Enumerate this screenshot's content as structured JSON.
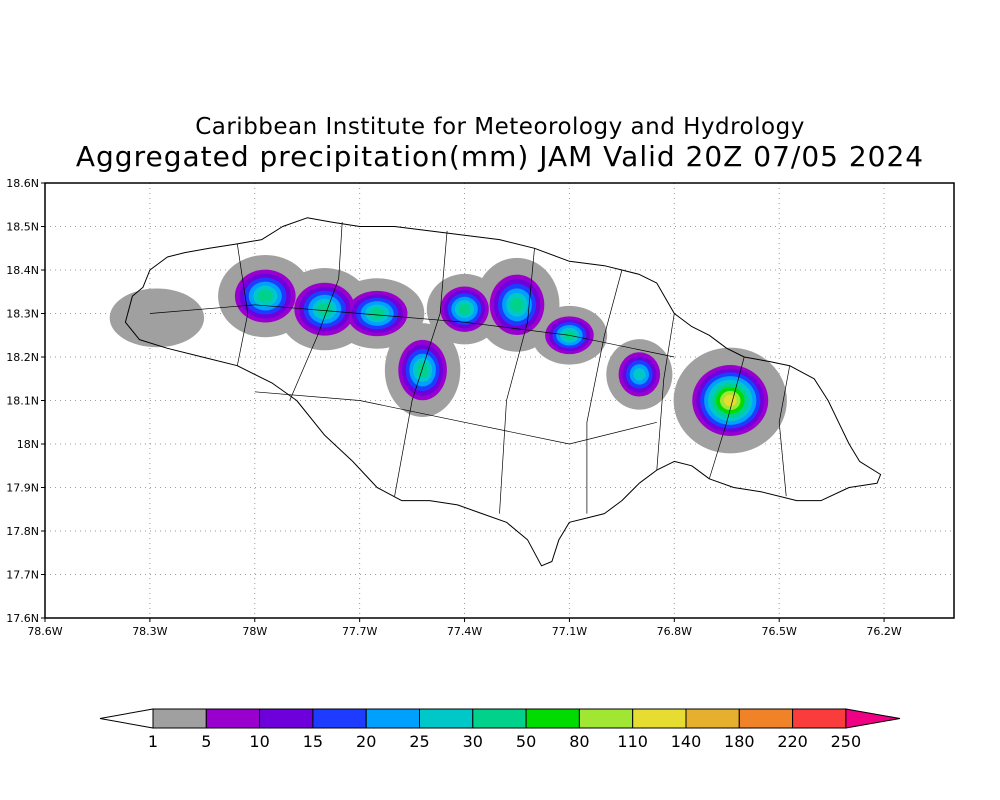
{
  "map": {
    "title": "Caribbean Institute for Meteorology and Hydrology",
    "subtitle": "Aggregated precipitation(mm) JAM Valid 20Z 07/05 2024",
    "region": "Jamaica",
    "lon_range": [
      -78.6,
      -76.0
    ],
    "lat_range": [
      17.6,
      18.6
    ],
    "lon_ticks": [
      {
        "value": -78.6,
        "label": "78.6W"
      },
      {
        "value": -78.3,
        "label": "78.3W"
      },
      {
        "value": -78.0,
        "label": "78W"
      },
      {
        "value": -77.7,
        "label": "77.7W"
      },
      {
        "value": -77.4,
        "label": "77.4W"
      },
      {
        "value": -77.1,
        "label": "77.1W"
      },
      {
        "value": -76.8,
        "label": "76.8W"
      },
      {
        "value": -76.5,
        "label": "76.5W"
      },
      {
        "value": -76.2,
        "label": "76.2W"
      }
    ],
    "lat_ticks": [
      {
        "value": 18.6,
        "label": "18.6N"
      },
      {
        "value": 18.5,
        "label": "18.5N"
      },
      {
        "value": 18.4,
        "label": "18.4N"
      },
      {
        "value": 18.3,
        "label": "18.3N"
      },
      {
        "value": 18.2,
        "label": "18.2N"
      },
      {
        "value": 18.1,
        "label": "18.1N"
      },
      {
        "value": 18.0,
        "label": "18N"
      },
      {
        "value": 17.9,
        "label": "17.9N"
      },
      {
        "value": 17.8,
        "label": "17.8N"
      },
      {
        "value": 17.7,
        "label": "17.7N"
      },
      {
        "value": 17.6,
        "label": "17.6N"
      }
    ],
    "grid": "dotted",
    "coastline": [
      [
        -78.37,
        18.28
      ],
      [
        -78.35,
        18.34
      ],
      [
        -78.32,
        18.36
      ],
      [
        -78.3,
        18.4
      ],
      [
        -78.25,
        18.43
      ],
      [
        -78.2,
        18.44
      ],
      [
        -78.13,
        18.45
      ],
      [
        -78.05,
        18.46
      ],
      [
        -77.98,
        18.47
      ],
      [
        -77.92,
        18.5
      ],
      [
        -77.85,
        18.52
      ],
      [
        -77.78,
        18.51
      ],
      [
        -77.7,
        18.5
      ],
      [
        -77.6,
        18.5
      ],
      [
        -77.5,
        18.49
      ],
      [
        -77.4,
        18.48
      ],
      [
        -77.3,
        18.47
      ],
      [
        -77.2,
        18.45
      ],
      [
        -77.1,
        18.42
      ],
      [
        -77.0,
        18.41
      ],
      [
        -76.95,
        18.4
      ],
      [
        -76.9,
        18.39
      ],
      [
        -76.85,
        18.37
      ],
      [
        -76.8,
        18.3
      ],
      [
        -76.75,
        18.27
      ],
      [
        -76.7,
        18.25
      ],
      [
        -76.65,
        18.22
      ],
      [
        -76.6,
        18.2
      ],
      [
        -76.53,
        18.19
      ],
      [
        -76.47,
        18.18
      ],
      [
        -76.4,
        18.15
      ],
      [
        -76.36,
        18.1
      ],
      [
        -76.33,
        18.05
      ],
      [
        -76.3,
        18.0
      ],
      [
        -76.27,
        17.96
      ],
      [
        -76.21,
        17.93
      ],
      [
        -76.22,
        17.91
      ],
      [
        -76.3,
        17.9
      ],
      [
        -76.38,
        17.87
      ],
      [
        -76.45,
        17.87
      ],
      [
        -76.55,
        17.89
      ],
      [
        -76.63,
        17.9
      ],
      [
        -76.7,
        17.92
      ],
      [
        -76.75,
        17.95
      ],
      [
        -76.8,
        17.96
      ],
      [
        -76.85,
        17.94
      ],
      [
        -76.9,
        17.91
      ],
      [
        -76.95,
        17.87
      ],
      [
        -77.0,
        17.84
      ],
      [
        -77.05,
        17.83
      ],
      [
        -77.1,
        17.82
      ],
      [
        -77.13,
        17.78
      ],
      [
        -77.15,
        17.73
      ],
      [
        -77.18,
        17.72
      ],
      [
        -77.22,
        17.78
      ],
      [
        -77.28,
        17.82
      ],
      [
        -77.35,
        17.84
      ],
      [
        -77.42,
        17.86
      ],
      [
        -77.5,
        17.87
      ],
      [
        -77.58,
        17.87
      ],
      [
        -77.65,
        17.9
      ],
      [
        -77.72,
        17.96
      ],
      [
        -77.8,
        18.02
      ],
      [
        -77.88,
        18.1
      ],
      [
        -77.95,
        18.14
      ],
      [
        -78.05,
        18.18
      ],
      [
        -78.15,
        18.2
      ],
      [
        -78.25,
        18.22
      ],
      [
        -78.33,
        18.24
      ],
      [
        -78.37,
        18.28
      ]
    ],
    "parishes": [
      [
        [
          -78.05,
          18.46
        ],
        [
          -78.02,
          18.3
        ],
        [
          -78.05,
          18.18
        ]
      ],
      [
        [
          -77.75,
          18.51
        ],
        [
          -77.76,
          18.38
        ],
        [
          -77.82,
          18.25
        ],
        [
          -77.9,
          18.1
        ]
      ],
      [
        [
          -77.45,
          18.49
        ],
        [
          -77.47,
          18.3
        ],
        [
          -77.55,
          18.1
        ],
        [
          -77.6,
          17.88
        ]
      ],
      [
        [
          -77.2,
          18.45
        ],
        [
          -77.22,
          18.28
        ],
        [
          -77.28,
          18.1
        ],
        [
          -77.3,
          17.84
        ]
      ],
      [
        [
          -76.95,
          18.4
        ],
        [
          -77.0,
          18.25
        ],
        [
          -77.05,
          18.05
        ],
        [
          -77.05,
          17.84
        ]
      ],
      [
        [
          -76.8,
          18.3
        ],
        [
          -76.83,
          18.15
        ],
        [
          -76.85,
          17.94
        ]
      ],
      [
        [
          -76.6,
          18.2
        ],
        [
          -76.65,
          18.05
        ],
        [
          -76.7,
          17.92
        ]
      ],
      [
        [
          -76.47,
          18.18
        ],
        [
          -76.5,
          18.05
        ],
        [
          -76.48,
          17.88
        ]
      ],
      [
        [
          -78.3,
          18.3
        ],
        [
          -78.0,
          18.32
        ],
        [
          -77.7,
          18.3
        ],
        [
          -77.4,
          18.28
        ],
        [
          -77.1,
          18.25
        ],
        [
          -76.8,
          18.2
        ]
      ],
      [
        [
          -78.0,
          18.12
        ],
        [
          -77.7,
          18.1
        ],
        [
          -77.4,
          18.05
        ],
        [
          -77.1,
          18.0
        ],
        [
          -76.85,
          18.05
        ]
      ]
    ],
    "precip_blobs": [
      {
        "lon": -78.28,
        "lat": 18.29,
        "rx": 0.1,
        "ry": 0.05,
        "levels": 1
      },
      {
        "lon": -77.97,
        "lat": 18.34,
        "rx": 0.1,
        "ry": 0.07,
        "levels": 7
      },
      {
        "lon": -77.8,
        "lat": 18.31,
        "rx": 0.1,
        "ry": 0.07,
        "levels": 7
      },
      {
        "lon": -77.65,
        "lat": 18.3,
        "rx": 0.1,
        "ry": 0.06,
        "levels": 7
      },
      {
        "lon": -77.52,
        "lat": 18.17,
        "rx": 0.08,
        "ry": 0.08,
        "levels": 7
      },
      {
        "lon": -77.4,
        "lat": 18.31,
        "rx": 0.08,
        "ry": 0.06,
        "levels": 7
      },
      {
        "lon": -77.25,
        "lat": 18.32,
        "rx": 0.09,
        "ry": 0.08,
        "levels": 7
      },
      {
        "lon": -77.1,
        "lat": 18.25,
        "rx": 0.08,
        "ry": 0.05,
        "levels": 7
      },
      {
        "lon": -76.9,
        "lat": 18.16,
        "rx": 0.07,
        "ry": 0.06,
        "levels": 6
      },
      {
        "lon": -76.64,
        "lat": 18.1,
        "rx": 0.12,
        "ry": 0.09,
        "levels": 10
      }
    ]
  },
  "colorbar": {
    "labels": [
      "1",
      "5",
      "10",
      "15",
      "20",
      "25",
      "30",
      "50",
      "80",
      "110",
      "140",
      "180",
      "220",
      "250"
    ],
    "colors": [
      "#ffffff",
      "#a0a0a0",
      "#9a00cd",
      "#6e00dc",
      "#1e3cff",
      "#00a0ff",
      "#00c8c8",
      "#00d28c",
      "#00dc00",
      "#a0e632",
      "#e6dc32",
      "#e6af2d",
      "#f08228",
      "#fa3c3c",
      "#f00082"
    ]
  }
}
